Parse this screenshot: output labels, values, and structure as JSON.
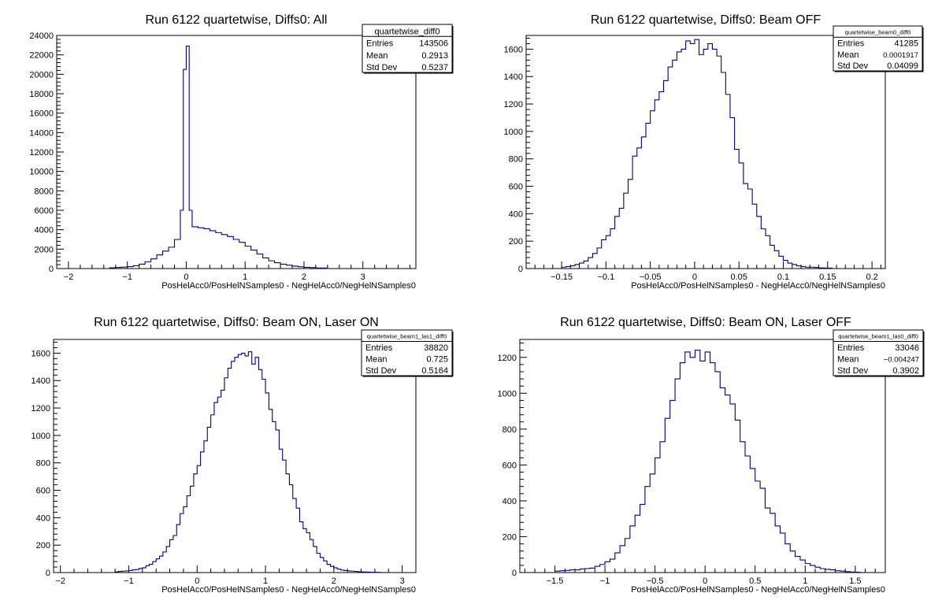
{
  "chart_data": [
    {
      "type": "histogram",
      "title": "Run 6122 quartetwise, Diffs0: All",
      "xlabel": "PosHelAcc0/PosHelNSamples0 - NegHelAcc0/NegHelNSamples0",
      "ylabel": "",
      "xlim": [
        -2.2,
        3.9
      ],
      "ylim": [
        0,
        24000
      ],
      "xticks": [
        -2,
        -1,
        0,
        1,
        2,
        3
      ],
      "xtick_labels": [
        "−2",
        "−1",
        "0",
        "1",
        "2",
        "3"
      ],
      "yticks": [
        0,
        2000,
        4000,
        6000,
        8000,
        10000,
        12000,
        14000,
        16000,
        18000,
        20000,
        22000,
        24000
      ],
      "ytick_labels": [
        "0",
        "2000",
        "4000",
        "6000",
        "8000",
        "10000",
        "12000",
        "14000",
        "16000",
        "18000",
        "20000",
        "22000",
        "24000"
      ],
      "bin_edges": [
        -1.3,
        -1.2,
        -1.1,
        -1.0,
        -0.9,
        -0.8,
        -0.7,
        -0.6,
        -0.5,
        -0.4,
        -0.3,
        -0.2,
        -0.1,
        -0.05,
        0.0,
        0.05,
        0.1,
        0.2,
        0.3,
        0.4,
        0.5,
        0.6,
        0.7,
        0.8,
        0.9,
        1.0,
        1.1,
        1.2,
        1.3,
        1.4,
        1.5,
        1.6,
        1.7,
        1.8,
        1.9,
        2.0,
        2.1,
        2.2,
        2.4
      ],
      "counts": [
        80,
        120,
        150,
        200,
        300,
        450,
        700,
        1000,
        1400,
        1800,
        2200,
        3000,
        6000,
        20500,
        22900,
        6000,
        4300,
        4200,
        4100,
        3900,
        3700,
        3500,
        3300,
        3000,
        2700,
        2300,
        1900,
        1500,
        1100,
        800,
        600,
        450,
        350,
        250,
        180,
        130,
        100,
        60
      ],
      "stats": {
        "name": "quartetwise_diff0",
        "rows": [
          {
            "label": "Entries",
            "value": "143506"
          },
          {
            "label": "Mean",
            "value": "0.2913"
          },
          {
            "label": "Std Dev",
            "value": "0.5237"
          }
        ]
      },
      "line_color": "#000080",
      "grid": false,
      "legend_placement": "top-right"
    },
    {
      "type": "histogram",
      "title": "Run 6122 quartetwise, Diffs0: Beam OFF",
      "xlabel": "PosHelAcc0/PosHelNSamples0 - NegHelAcc0/NegHelNSamples0",
      "ylabel": "",
      "xlim": [
        -0.19,
        0.215
      ],
      "ylim": [
        0,
        1700
      ],
      "xticks": [
        -0.15,
        -0.1,
        -0.05,
        0,
        0.05,
        0.1,
        0.15,
        0.2
      ],
      "xtick_labels": [
        "−0.15",
        "−0.1",
        "−0.05",
        "0",
        "0.05",
        "0.1",
        "0.15",
        "0.2"
      ],
      "yticks": [
        0,
        200,
        400,
        600,
        800,
        1000,
        1200,
        1400,
        1600
      ],
      "ytick_labels": [
        "0",
        "200",
        "400",
        "600",
        "800",
        "1000",
        "1200",
        "1400",
        "1600"
      ],
      "bin_edges": [
        -0.15,
        -0.145,
        -0.14,
        -0.135,
        -0.13,
        -0.125,
        -0.12,
        -0.115,
        -0.11,
        -0.105,
        -0.1,
        -0.095,
        -0.09,
        -0.085,
        -0.08,
        -0.075,
        -0.07,
        -0.065,
        -0.06,
        -0.055,
        -0.05,
        -0.045,
        -0.04,
        -0.035,
        -0.03,
        -0.025,
        -0.02,
        -0.015,
        -0.01,
        -0.005,
        0.0,
        0.005,
        0.01,
        0.015,
        0.02,
        0.025,
        0.03,
        0.035,
        0.04,
        0.045,
        0.05,
        0.055,
        0.06,
        0.065,
        0.07,
        0.075,
        0.08,
        0.085,
        0.09,
        0.095,
        0.1,
        0.105,
        0.11,
        0.115,
        0.12,
        0.125,
        0.13,
        0.135,
        0.14,
        0.145,
        0.15,
        0.155
      ],
      "counts": [
        10,
        15,
        20,
        30,
        40,
        55,
        80,
        110,
        150,
        210,
        240,
        290,
        380,
        440,
        550,
        650,
        820,
        880,
        960,
        1060,
        1150,
        1230,
        1290,
        1370,
        1470,
        1520,
        1580,
        1600,
        1660,
        1640,
        1670,
        1560,
        1600,
        1640,
        1600,
        1550,
        1430,
        1270,
        1100,
        870,
        770,
        620,
        580,
        470,
        380,
        290,
        240,
        170,
        130,
        90,
        60,
        40,
        30,
        20,
        15,
        10,
        10,
        8,
        5,
        4,
        3
      ],
      "stats": {
        "name": "quartetwise_beam0_diff0",
        "rows": [
          {
            "label": "Entries",
            "value": "41285"
          },
          {
            "label": "Mean",
            "value": "0.0001917"
          },
          {
            "label": "Std Dev",
            "value": "0.04099"
          }
        ]
      },
      "line_color": "#000080",
      "grid": false,
      "legend_placement": "top-right"
    },
    {
      "type": "histogram",
      "title": "Run 6122 quartetwise, Diffs0: Beam ON, Laser ON",
      "xlabel": "PosHelAcc0/PosHelNSamples0 - NegHelAcc0/NegHelNSamples0",
      "ylabel": "",
      "xlim": [
        -2.1,
        3.2
      ],
      "ylim": [
        0,
        1700
      ],
      "xticks": [
        -2,
        -1,
        0,
        1,
        2,
        3
      ],
      "xtick_labels": [
        "−2",
        "−1",
        "0",
        "1",
        "2",
        "3"
      ],
      "yticks": [
        0,
        200,
        400,
        600,
        800,
        1000,
        1200,
        1400,
        1600
      ],
      "ytick_labels": [
        "0",
        "200",
        "400",
        "600",
        "800",
        "1000",
        "1200",
        "1400",
        "1600"
      ],
      "bin_edges": [
        -1.2,
        -1.15,
        -1.1,
        -1.05,
        -1.0,
        -0.95,
        -0.9,
        -0.85,
        -0.8,
        -0.75,
        -0.7,
        -0.65,
        -0.6,
        -0.55,
        -0.5,
        -0.45,
        -0.4,
        -0.35,
        -0.3,
        -0.25,
        -0.2,
        -0.15,
        -0.1,
        -0.05,
        0.0,
        0.05,
        0.1,
        0.15,
        0.2,
        0.25,
        0.3,
        0.35,
        0.4,
        0.45,
        0.5,
        0.55,
        0.6,
        0.65,
        0.7,
        0.75,
        0.8,
        0.85,
        0.9,
        0.95,
        1.0,
        1.05,
        1.1,
        1.15,
        1.2,
        1.25,
        1.3,
        1.35,
        1.4,
        1.45,
        1.5,
        1.55,
        1.6,
        1.65,
        1.7,
        1.75,
        1.8,
        1.85,
        1.9,
        1.95,
        2.0,
        2.05,
        2.1,
        2.15,
        2.2,
        2.25,
        2.3,
        2.35,
        2.4,
        2.45,
        2.5,
        2.55,
        2.6,
        2.65,
        2.7
      ],
      "counts": [
        5,
        8,
        10,
        12,
        15,
        20,
        22,
        30,
        35,
        50,
        60,
        80,
        100,
        120,
        150,
        190,
        240,
        270,
        350,
        430,
        480,
        560,
        630,
        720,
        780,
        880,
        960,
        1060,
        1150,
        1240,
        1280,
        1330,
        1420,
        1490,
        1540,
        1570,
        1590,
        1600,
        1580,
        1610,
        1520,
        1570,
        1480,
        1410,
        1310,
        1190,
        1100,
        1040,
        900,
        820,
        720,
        640,
        540,
        470,
        370,
        320,
        290,
        240,
        190,
        140,
        110,
        85,
        60,
        45,
        35,
        25,
        18,
        15,
        12,
        10,
        8,
        6,
        5,
        4,
        3,
        2,
        2,
        1
      ],
      "stats": {
        "name": "quartetwise_beam1_las1_diff0",
        "rows": [
          {
            "label": "Entries",
            "value": "38820"
          },
          {
            "label": "Mean",
            "value": "0.725"
          },
          {
            "label": "Std Dev",
            "value": "0.5164"
          }
        ]
      },
      "line_color": "#000080",
      "grid": false,
      "legend_placement": "top-right"
    },
    {
      "type": "histogram",
      "title": "Run 6122 quartetwise, Diffs0: Beam ON, Laser OFF",
      "xlabel": "PosHelAcc0/PosHelNSamples0 - NegHelAcc0/NegHelNSamples0",
      "ylabel": "",
      "xlim": [
        -1.85,
        1.8
      ],
      "ylim": [
        0,
        1300
      ],
      "xticks": [
        -1.5,
        -1,
        -0.5,
        0,
        0.5,
        1,
        1.5
      ],
      "xtick_labels": [
        "−1.5",
        "−1",
        "−0.5",
        "0",
        "0.5",
        "1",
        "1.5"
      ],
      "yticks": [
        0,
        200,
        400,
        600,
        800,
        1000,
        1200
      ],
      "ytick_labels": [
        "0",
        "200",
        "400",
        "600",
        "800",
        "1000",
        "1200"
      ],
      "bin_edges": [
        -1.5,
        -1.45,
        -1.4,
        -1.35,
        -1.3,
        -1.25,
        -1.2,
        -1.15,
        -1.1,
        -1.05,
        -1.0,
        -0.95,
        -0.9,
        -0.85,
        -0.8,
        -0.75,
        -0.7,
        -0.65,
        -0.6,
        -0.55,
        -0.5,
        -0.45,
        -0.4,
        -0.35,
        -0.3,
        -0.25,
        -0.2,
        -0.15,
        -0.1,
        -0.05,
        0.0,
        0.05,
        0.1,
        0.15,
        0.2,
        0.25,
        0.3,
        0.35,
        0.4,
        0.45,
        0.5,
        0.55,
        0.6,
        0.65,
        0.7,
        0.75,
        0.8,
        0.85,
        0.9,
        0.95,
        1.0,
        1.05,
        1.1,
        1.15,
        1.2,
        1.25,
        1.3,
        1.35,
        1.4,
        1.45,
        1.5,
        1.55
      ],
      "counts": [
        8,
        10,
        12,
        15,
        15,
        20,
        22,
        25,
        35,
        45,
        60,
        75,
        110,
        150,
        190,
        260,
        320,
        380,
        480,
        550,
        640,
        730,
        860,
        960,
        1080,
        1170,
        1230,
        1200,
        1240,
        1180,
        1230,
        1170,
        1120,
        1030,
        990,
        940,
        850,
        730,
        650,
        580,
        510,
        470,
        360,
        330,
        260,
        220,
        160,
        120,
        90,
        70,
        50,
        40,
        30,
        22,
        18,
        15,
        10,
        8,
        5,
        3,
        2
      ],
      "stats": {
        "name": "quartetwise_beam1_las0_diff0",
        "rows": [
          {
            "label": "Entries",
            "value": "33046"
          },
          {
            "label": "Mean",
            "value": "−0.004247"
          },
          {
            "label": "Std Dev",
            "value": "0.3902"
          }
        ]
      },
      "line_color": "#000080",
      "grid": false,
      "legend_placement": "top-right"
    }
  ]
}
